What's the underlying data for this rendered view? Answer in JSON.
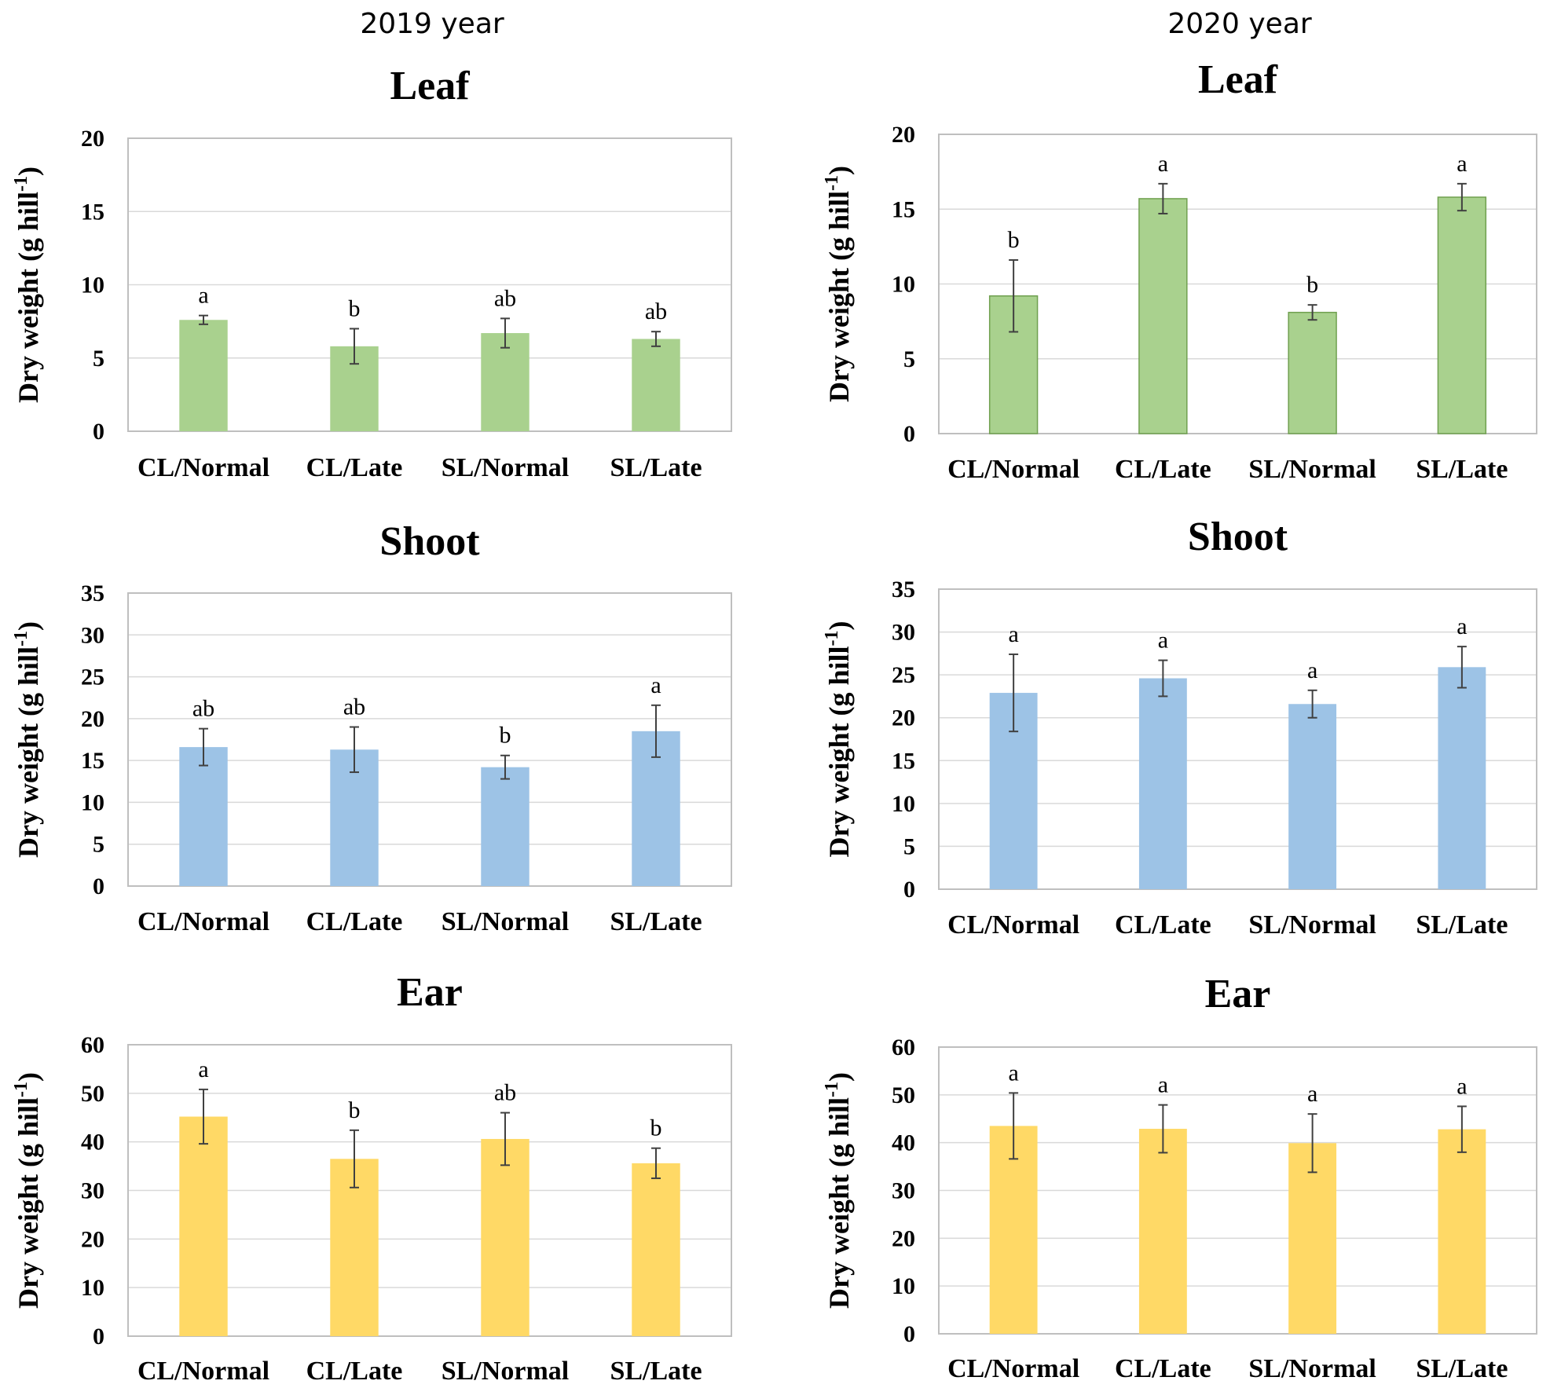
{
  "figure": {
    "col_titles": [
      "2019 year",
      "2020 year"
    ]
  },
  "colors": {
    "Leaf": "#a9d18e",
    "Shoot": "#9dc3e6",
    "Ear": "#ffd966",
    "leaf_2020_stroke": "#70a050"
  },
  "chart_data": [
    {
      "type": "bar",
      "year": "2019 year",
      "title": "Leaf",
      "ylabel": "Dry weight (g hill",
      "ylabel_sup": "-1",
      "ylabel_end": ")",
      "ylim": [
        0,
        20
      ],
      "yticks": [
        0,
        5,
        10,
        15,
        20
      ],
      "categories": [
        "CL/Normal",
        "CL/Late",
        "SL/Normal",
        "SL/Late"
      ],
      "values": [
        7.6,
        5.8,
        6.7,
        6.3
      ],
      "errors": [
        0.3,
        1.2,
        1.0,
        0.5
      ],
      "letters": [
        "a",
        "b",
        "ab",
        "ab"
      ]
    },
    {
      "type": "bar",
      "year": "2020 year",
      "title": "Leaf",
      "ylabel": "Dry weight (g hill",
      "ylabel_sup": "-1",
      "ylabel_end": ")",
      "ylim": [
        0,
        20
      ],
      "yticks": [
        0,
        5,
        10,
        15,
        20
      ],
      "categories": [
        "CL/Normal",
        "CL/Late",
        "SL/Normal",
        "SL/Late"
      ],
      "values": [
        9.2,
        15.7,
        8.1,
        15.8
      ],
      "errors": [
        2.4,
        1.0,
        0.5,
        0.9
      ],
      "letters": [
        "b",
        "a",
        "b",
        "a"
      ]
    },
    {
      "type": "bar",
      "year": "2019 year",
      "title": "Shoot",
      "ylabel": "Dry weight (g hill",
      "ylabel_sup": "-1",
      "ylabel_end": ")",
      "ylim": [
        0,
        35
      ],
      "yticks": [
        0,
        5,
        10,
        15,
        20,
        25,
        30,
        35
      ],
      "categories": [
        "CL/Normal",
        "CL/Late",
        "SL/Normal",
        "SL/Late"
      ],
      "values": [
        16.6,
        16.3,
        14.2,
        18.5
      ],
      "errors": [
        2.2,
        2.7,
        1.4,
        3.1
      ],
      "letters": [
        "ab",
        "ab",
        "b",
        "a"
      ]
    },
    {
      "type": "bar",
      "year": "2020 year",
      "title": "Shoot",
      "ylabel": "Dry weight (g hill",
      "ylabel_sup": "-1",
      "ylabel_end": ")",
      "ylim": [
        0,
        35
      ],
      "yticks": [
        0,
        5,
        10,
        15,
        20,
        25,
        30,
        35
      ],
      "categories": [
        "CL/Normal",
        "CL/Late",
        "SL/Normal",
        "SL/Late"
      ],
      "values": [
        22.9,
        24.6,
        21.6,
        25.9
      ],
      "errors": [
        4.5,
        2.1,
        1.6,
        2.4
      ],
      "letters": [
        "a",
        "a",
        "a",
        "a"
      ]
    },
    {
      "type": "bar",
      "year": "2019 year",
      "title": "Ear",
      "ylabel": "Dry weight (g hill",
      "ylabel_sup": "-1",
      "ylabel_end": ")",
      "ylim": [
        0,
        60
      ],
      "yticks": [
        0,
        10,
        20,
        30,
        40,
        50,
        60
      ],
      "categories": [
        "CL/Normal",
        "CL/Late",
        "SL/Normal",
        "SL/Late"
      ],
      "values": [
        45.2,
        36.5,
        40.6,
        35.6
      ],
      "errors": [
        5.6,
        5.9,
        5.4,
        3.1
      ],
      "letters": [
        "a",
        "b",
        "ab",
        "b"
      ]
    },
    {
      "type": "bar",
      "year": "2020 year",
      "title": "Ear",
      "ylabel": "Dry weight (g hill",
      "ylabel_sup": "-1",
      "ylabel_end": ")",
      "ylim": [
        0,
        60
      ],
      "yticks": [
        0,
        10,
        20,
        30,
        40,
        50,
        60
      ],
      "categories": [
        "CL/Normal",
        "CL/Late",
        "SL/Normal",
        "SL/Late"
      ],
      "values": [
        43.5,
        42.9,
        39.9,
        42.8
      ],
      "errors": [
        6.9,
        5.0,
        6.1,
        4.8
      ],
      "letters": [
        "a",
        "a",
        "a",
        "a"
      ]
    }
  ]
}
